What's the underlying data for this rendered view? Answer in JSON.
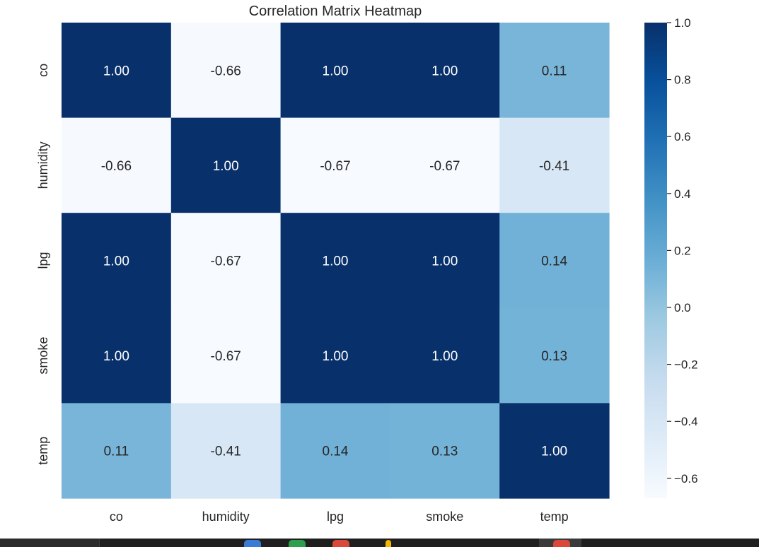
{
  "chart_data": {
    "type": "heatmap",
    "title": "Correlation Matrix Heatmap",
    "xlabel": "",
    "ylabel": "",
    "x_labels": [
      "co",
      "humidity",
      "lpg",
      "smoke",
      "temp"
    ],
    "y_labels": [
      "co",
      "humidity",
      "lpg",
      "smoke",
      "temp"
    ],
    "matrix": [
      [
        1.0,
        -0.66,
        1.0,
        1.0,
        0.11
      ],
      [
        -0.66,
        1.0,
        -0.67,
        -0.67,
        -0.41
      ],
      [
        1.0,
        -0.67,
        1.0,
        1.0,
        0.14
      ],
      [
        1.0,
        -0.67,
        1.0,
        1.0,
        0.13
      ],
      [
        0.11,
        -0.41,
        0.14,
        0.13,
        1.0
      ]
    ],
    "annotations": [
      [
        "1.00",
        "-0.66",
        "1.00",
        "1.00",
        "0.11"
      ],
      [
        "-0.66",
        "1.00",
        "-0.67",
        "-0.67",
        "-0.41"
      ],
      [
        "1.00",
        "-0.67",
        "1.00",
        "1.00",
        "0.14"
      ],
      [
        "1.00",
        "-0.67",
        "1.00",
        "1.00",
        "0.13"
      ],
      [
        "0.11",
        "-0.41",
        "0.14",
        "0.13",
        "1.00"
      ]
    ],
    "colormap": "Blues",
    "colorbar": {
      "vmin": -0.67,
      "vmax": 1.0,
      "ticks": [
        1.0,
        0.8,
        0.6,
        0.4,
        0.2,
        0.0,
        -0.2,
        -0.4,
        -0.6
      ],
      "tick_labels": [
        "1.0",
        "0.8",
        "0.6",
        "0.4",
        "0.2",
        "0.0",
        "−0.2",
        "−0.4",
        "−0.6"
      ],
      "position": "right"
    },
    "grid": false
  }
}
